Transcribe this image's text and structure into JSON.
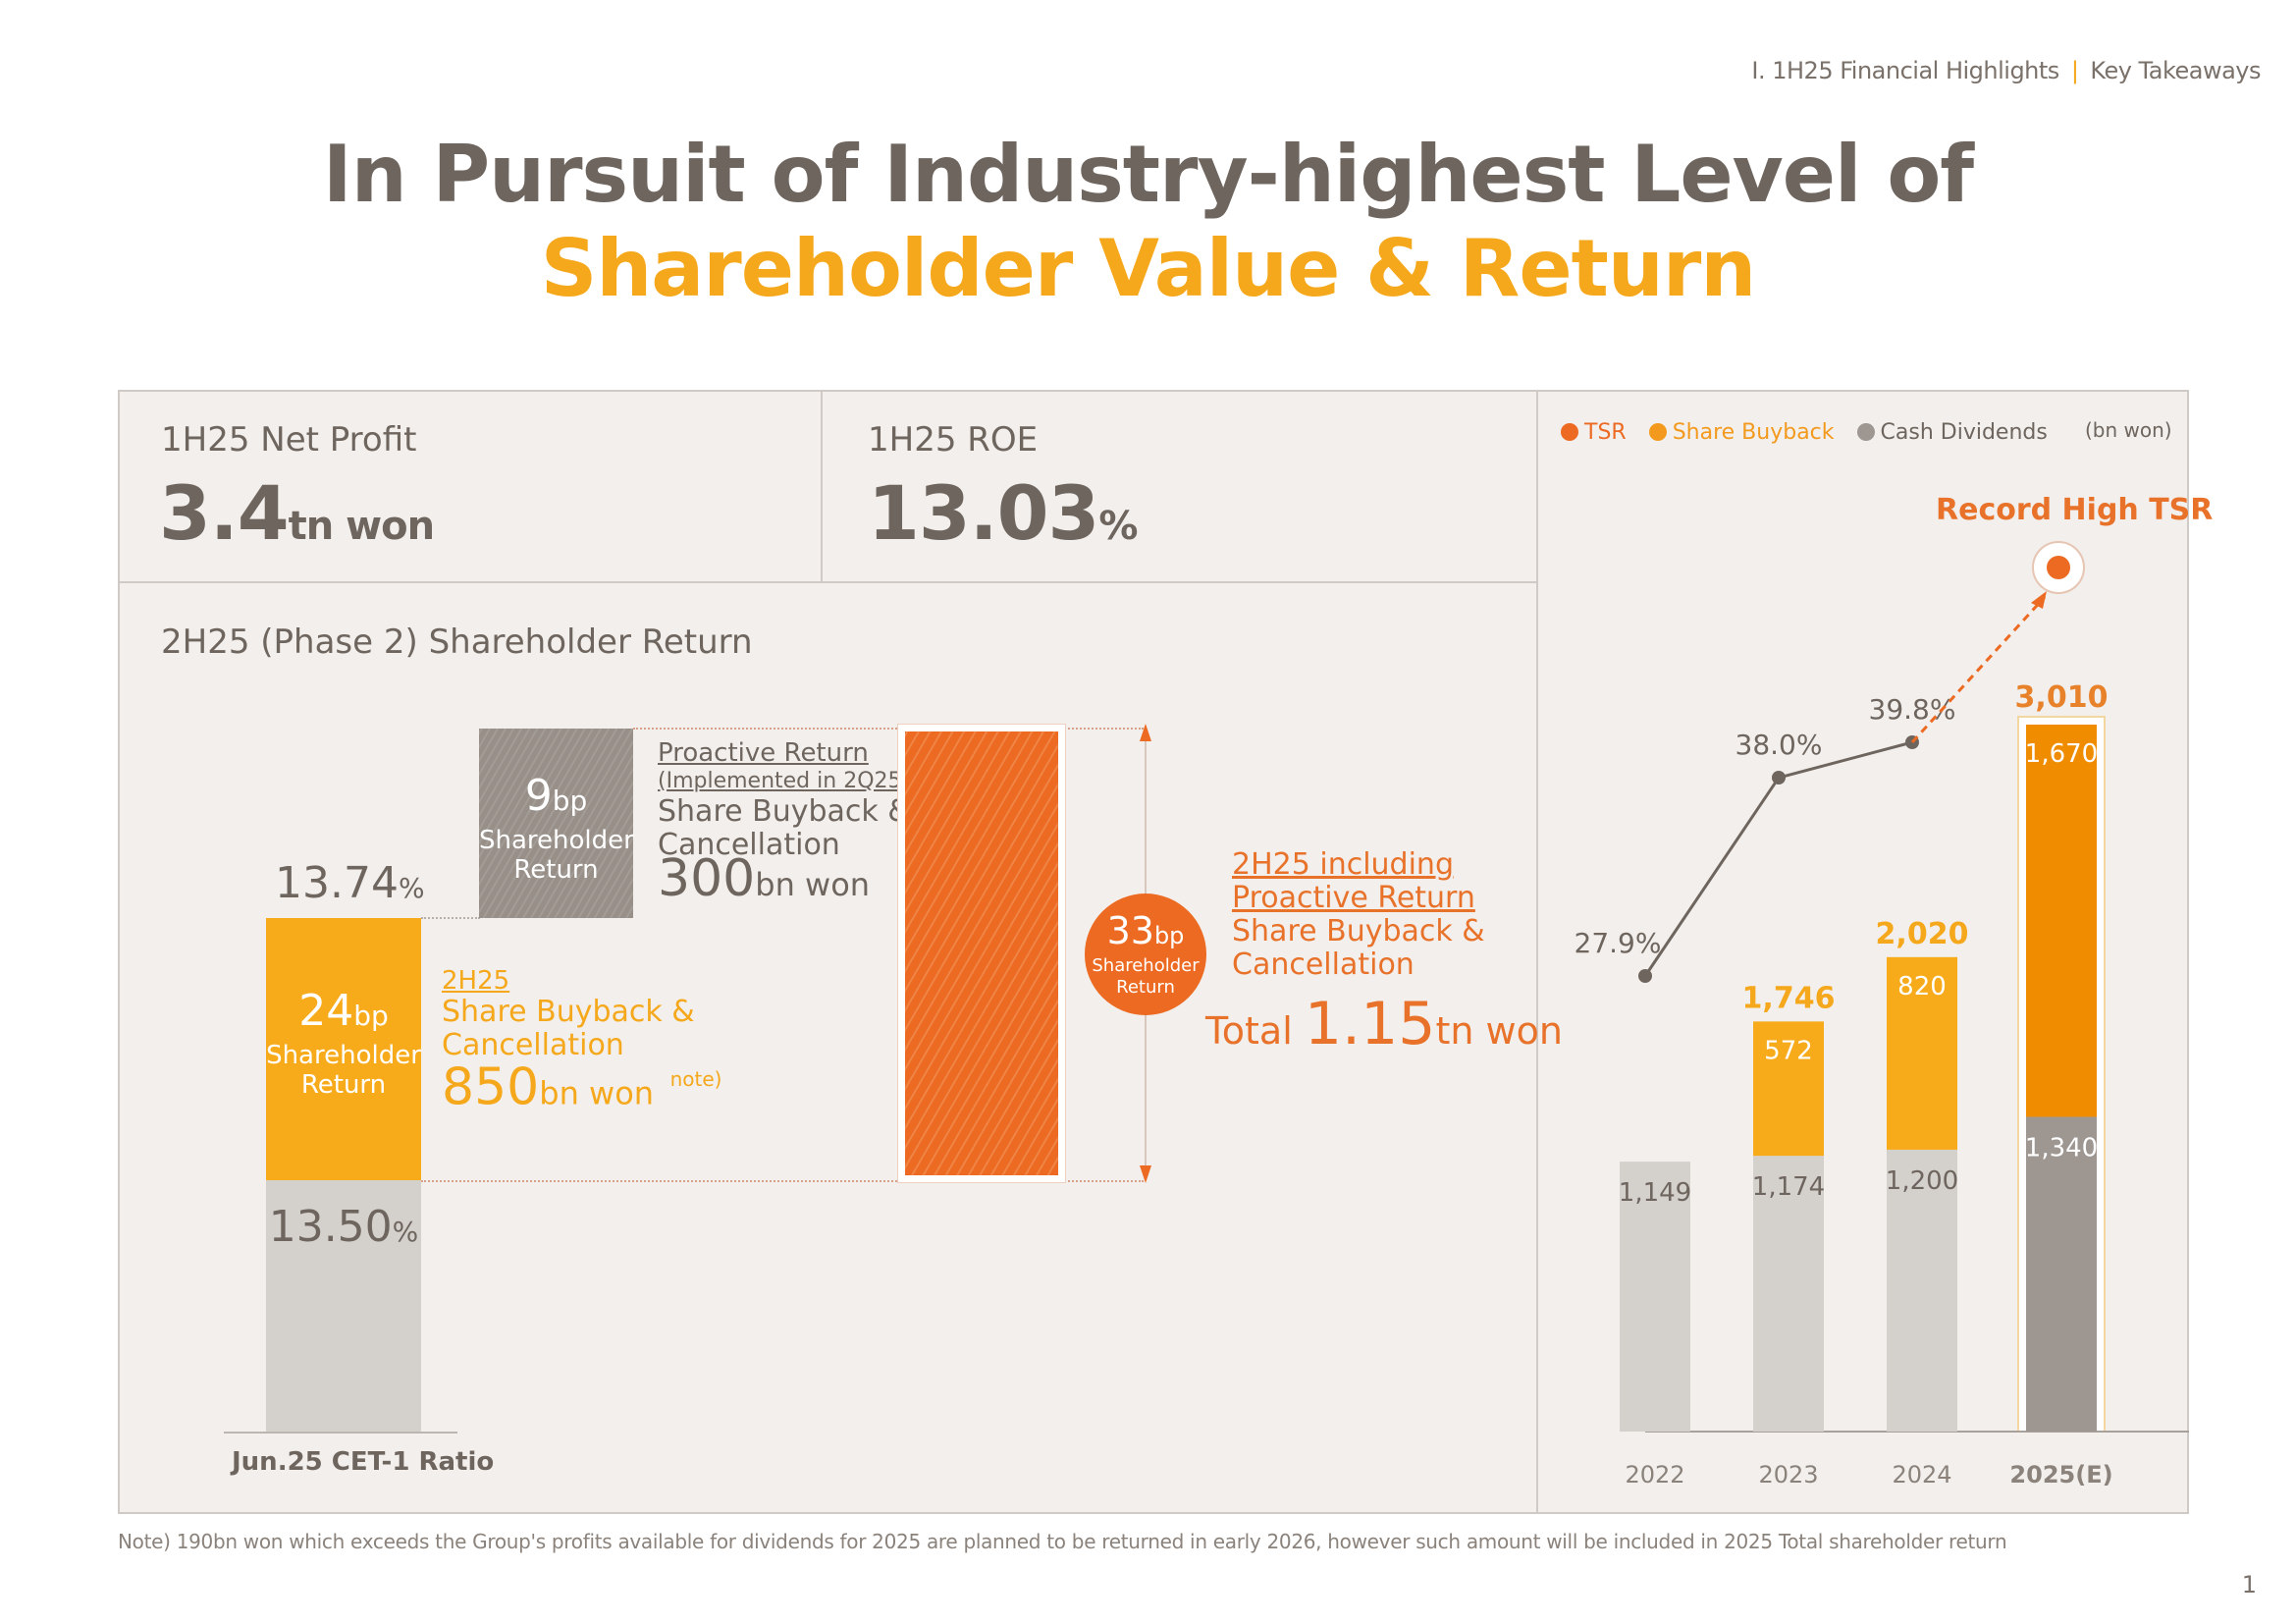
{
  "header": {
    "breadcrumb_section": "Ⅰ. 1H25 Financial Highlights",
    "breadcrumb_separator": "|",
    "breadcrumb_page": "Key Takeaways",
    "title_line1": "In Pursuit of Industry-highest Level of",
    "title_line2": "Shareholder Value & Return"
  },
  "stats": {
    "net_profit": {
      "label": "1H25 Net Profit",
      "value": "3.4",
      "unit": "tn won"
    },
    "roe": {
      "label": "1H25 ROE",
      "value": "13.03",
      "unit": "%"
    }
  },
  "phase2": {
    "section_title": "2H25 (Phase 2) Shareholder Return",
    "cet_top_value": "13.74",
    "cet_top_unit": "%",
    "cet_base_value": "13.50",
    "cet_base_unit": "%",
    "cet_label": "Jun.25 CET-1 Ratio",
    "block_24": {
      "value": "24",
      "unit": "bp",
      "line1": "Shareholder",
      "line2": "Return"
    },
    "block_9": {
      "value": "9",
      "unit": "bp",
      "line1": "Shareholder",
      "line2": "Return"
    },
    "proactive": {
      "title": "Proactive Return",
      "subtitle": "(Implemented in 2Q25)",
      "line1": "Share Buyback &",
      "line2": "Cancellation",
      "amount": "300",
      "amount_unit": "bn won"
    },
    "h2": {
      "title": "2H25",
      "line1": "Share Buyback &",
      "line2": "Cancellation",
      "amount": "850",
      "amount_unit": "bn won",
      "note_mark": "note)"
    },
    "circle_33": {
      "value": "33",
      "unit": "bp",
      "line1": "Shareholder",
      "line2": "Return"
    },
    "total": {
      "title1": "2H25 including",
      "title2": "Proactive Return",
      "line1": "Share Buyback &",
      "line2": "Cancellation",
      "prefix": "Total",
      "amount": "1.15",
      "amount_unit": "tn won"
    }
  },
  "chart_data": {
    "type": "bar",
    "title": "",
    "unit_label": "(bn won)",
    "annotation": "Record High TSR",
    "categories": [
      "2022",
      "2023",
      "2024",
      "2025(E)"
    ],
    "legend": [
      {
        "name": "TSR",
        "color": "#ec6a22"
      },
      {
        "name": "Share Buyback",
        "color": "#f39a1e"
      },
      {
        "name": "Cash Dividends",
        "color": "#9e9691"
      }
    ],
    "series": [
      {
        "name": "Cash Dividends",
        "values": [
          1149,
          1174,
          1200,
          1340
        ],
        "labels": [
          "1,149",
          "1,174",
          "1,200",
          "1,340"
        ]
      },
      {
        "name": "Share Buyback",
        "values": [
          0,
          572,
          820,
          1670
        ],
        "labels": [
          "",
          "572",
          "820",
          "1,670"
        ]
      }
    ],
    "totals": {
      "values": [
        1149,
        1746,
        2020,
        3010
      ],
      "labels": [
        "",
        "1,746",
        "2,020",
        "3,010"
      ]
    },
    "tsr": {
      "name": "TSR",
      "values": [
        27.9,
        38.0,
        39.8
      ],
      "labels": [
        "27.9%",
        "38.0%",
        "39.8%"
      ],
      "projection": "record high (2025E)"
    },
    "colors": {
      "dividend": "#d4d0cc",
      "dividend_highlight": "#9e9691",
      "buyback": "#f7ab1b",
      "buyback_highlight": "#f08c00",
      "tsr_line": "#6e655e",
      "tsr_projection": "#ec6a22"
    },
    "xlabel": "",
    "ylabel": "",
    "ylim": [
      0,
      3010
    ],
    "tsr_ylim": [
      20,
      45
    ],
    "grid": false,
    "legend_position": "top-left"
  },
  "footer": {
    "note": "Note) 190bn won which exceeds the Group's profits available for dividends for 2025 are planned to be returned in early 2026, however such amount will be included in 2025 Total shareholder return",
    "page_number": "1"
  }
}
